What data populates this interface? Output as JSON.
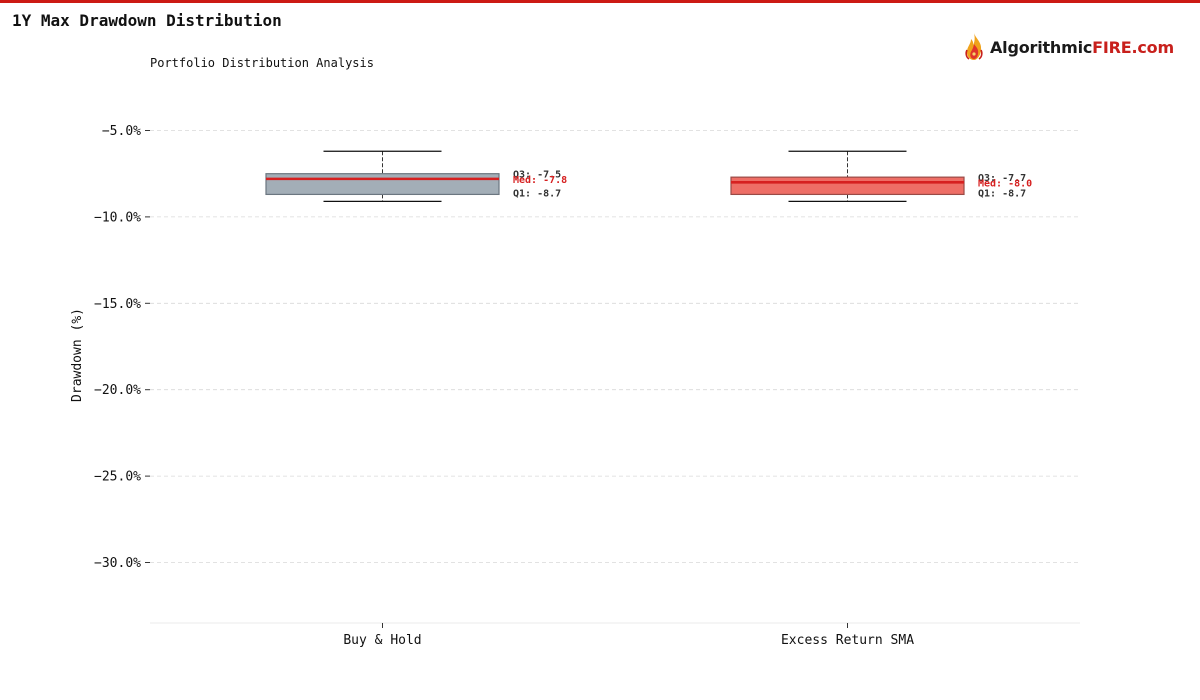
{
  "page": {
    "title": "1Y Max Drawdown Distribution"
  },
  "brand": {
    "name_part1": "Algorithmic",
    "name_part2": "FIRE.com",
    "accent_color": "#cc1a14"
  },
  "chart_data": {
    "type": "box",
    "title": "Portfolio Distribution Analysis",
    "xlabel": "",
    "ylabel": "Drawdown (%)",
    "ylim": [
      -33.5,
      -1.5
    ],
    "yticks": [
      -5,
      -10,
      -15,
      -20,
      -25,
      -30
    ],
    "ytick_labels": [
      "−5.0%",
      "−10.0%",
      "−15.0%",
      "−20.0%",
      "−25.0%",
      "−30.0%"
    ],
    "grid": true,
    "categories": [
      "Buy & Hold",
      "Excess Return SMA"
    ],
    "series": [
      {
        "whisker_high": -6.2,
        "q3": -7.5,
        "median": -7.8,
        "q1": -8.7,
        "whisker_low": -9.1,
        "q3_label": "Q3: -7.5",
        "median_label": "Med: -7.8",
        "q1_label": "Q1: -8.7",
        "fill": "#a3aeb7",
        "edge": "#6b7680"
      },
      {
        "whisker_high": -6.2,
        "q3": -7.7,
        "median": -8.0,
        "q1": -8.7,
        "whisker_low": -9.1,
        "q3_label": "Q3: -7.7",
        "median_label": "Med: -8.0",
        "q1_label": "Q1: -8.7",
        "fill": "#ee6e66",
        "edge": "#9a4a46"
      }
    ],
    "median_color": "#d62020"
  }
}
